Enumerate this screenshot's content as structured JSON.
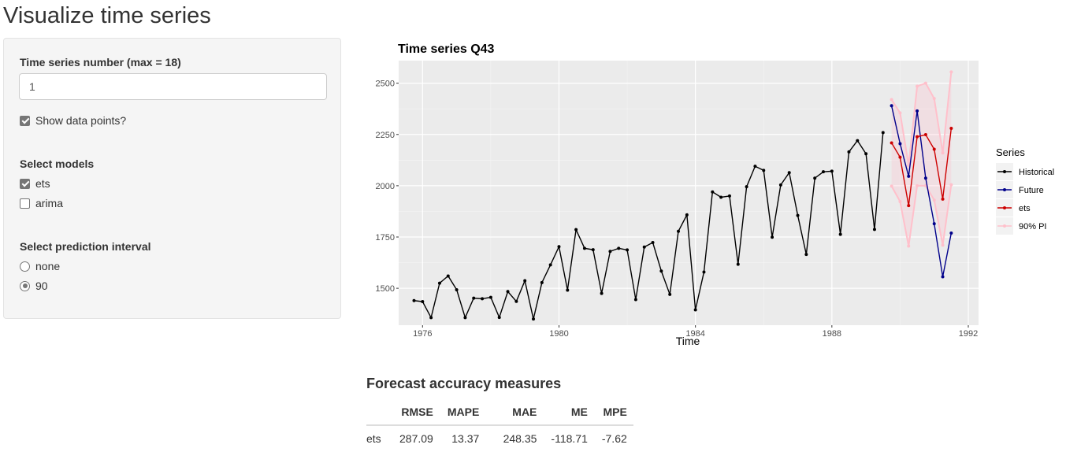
{
  "page": {
    "title": "Visualize time series"
  },
  "sidebar": {
    "ts_label": "Time series number (max = 18)",
    "ts_value": "1",
    "show_points_label": "Show data points?",
    "show_points_checked": true,
    "models_label": "Select models",
    "models": [
      {
        "label": "ets",
        "checked": true
      },
      {
        "label": "arima",
        "checked": false
      }
    ],
    "pi_label": "Select prediction interval",
    "pi_options": [
      {
        "label": "none",
        "checked": false
      },
      {
        "label": "90",
        "checked": true
      }
    ]
  },
  "chart_data": {
    "type": "line",
    "title": "Time series Q43",
    "xlabel": "Time",
    "ylabel": "",
    "xlim": [
      1975.3,
      1992.3
    ],
    "ylim": [
      1320,
      2610
    ],
    "x_ticks": [
      1976,
      1980,
      1984,
      1988,
      1992
    ],
    "y_ticks": [
      1500,
      1750,
      2000,
      2250,
      2500
    ],
    "grid": true,
    "points_shown": true,
    "legend": {
      "title": "Series",
      "position": "right"
    },
    "series": [
      {
        "name": "Historical",
        "color": "#000000",
        "x_start": 1975.75,
        "x_step": 0.25,
        "values": [
          1440,
          1435,
          1357,
          1525,
          1560,
          1493,
          1357,
          1452,
          1449,
          1456,
          1358,
          1484,
          1436,
          1537,
          1350,
          1528,
          1614,
          1703,
          1491,
          1786,
          1695,
          1688,
          1475,
          1680,
          1695,
          1687,
          1445,
          1701,
          1723,
          1584,
          1470,
          1778,
          1858,
          1395,
          1579,
          1970,
          1944,
          1950,
          1617,
          1995,
          2095,
          2075,
          1749,
          2004,
          2064,
          1855,
          1665,
          2037,
          2068,
          2071,
          1763,
          2165,
          2220,
          2156,
          1787,
          2259
        ]
      },
      {
        "name": "Future",
        "color": "#00008b",
        "x_start": 1989.75,
        "x_step": 0.25,
        "values": [
          2390,
          2205,
          2046,
          2365,
          2037,
          1815,
          1556,
          1769
        ]
      },
      {
        "name": "ets",
        "color": "#cd0000",
        "x_start": 1989.75,
        "x_step": 0.25,
        "values": [
          2209,
          2139,
          1903,
          2239,
          2249,
          2178,
          1935,
          2280
        ]
      },
      {
        "name": "90% PI",
        "color": "#ffc0cb",
        "x_start": 1989.75,
        "x_step": 0.25,
        "upper": [
          2420,
          2355,
          2100,
          2485,
          2500,
          2425,
          2160,
          2555
        ],
        "lower": [
          1998,
          1923,
          1706,
          2000,
          2000,
          1930,
          1710,
          2005
        ]
      }
    ]
  },
  "accuracy": {
    "title": "Forecast accuracy measures",
    "columns": [
      "RMSE",
      "MAPE",
      "MAE",
      "ME",
      "MPE"
    ],
    "rows": [
      {
        "name": "ets",
        "values": [
          "287.09",
          "13.37",
          "248.35",
          "-118.71",
          "-7.62"
        ]
      }
    ]
  }
}
